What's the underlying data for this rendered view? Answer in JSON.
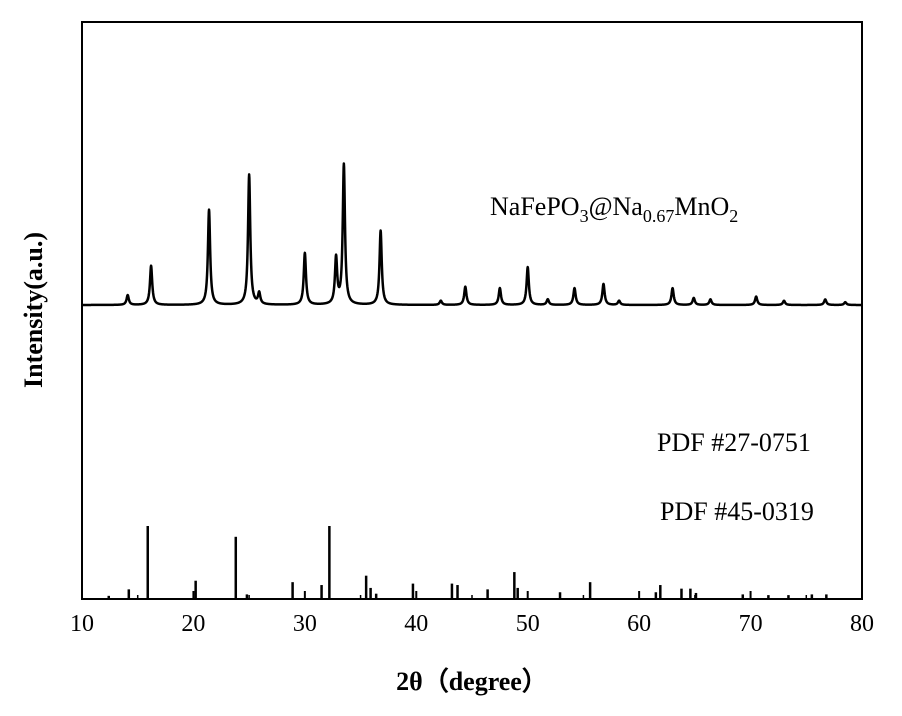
{
  "chart_data": {
    "type": "line",
    "xlabel": "2θ（degree）",
    "ylabel": "Intensity(a.u.)",
    "xlim": [
      10,
      80
    ],
    "x_ticks": [
      "10",
      "20",
      "30",
      "40",
      "50",
      "60",
      "70",
      "80"
    ],
    "y_ticks_shown": false,
    "grid": false,
    "annotations": {
      "sample": {
        "base": "NaFePO",
        "sub1": "3",
        "mid": "@Na",
        "sub2": "0.67",
        "mid2": "MnO",
        "sub3": "2"
      },
      "ref1": "PDF #27-0751",
      "ref2": "PDF #45-0319"
    },
    "pattern": {
      "baseline": 0,
      "peaks": [
        {
          "x": 14.1,
          "y": 0.07
        },
        {
          "x": 16.2,
          "y": 0.28
        },
        {
          "x": 21.4,
          "y": 0.68
        },
        {
          "x": 25.0,
          "y": 0.93
        },
        {
          "x": 25.9,
          "y": 0.08
        },
        {
          "x": 30.0,
          "y": 0.37
        },
        {
          "x": 32.8,
          "y": 0.33
        },
        {
          "x": 33.5,
          "y": 1.0
        },
        {
          "x": 36.8,
          "y": 0.53
        },
        {
          "x": 42.2,
          "y": 0.03
        },
        {
          "x": 44.4,
          "y": 0.13
        },
        {
          "x": 47.5,
          "y": 0.12
        },
        {
          "x": 50.0,
          "y": 0.27
        },
        {
          "x": 51.8,
          "y": 0.04
        },
        {
          "x": 54.2,
          "y": 0.12
        },
        {
          "x": 56.8,
          "y": 0.15
        },
        {
          "x": 58.2,
          "y": 0.03
        },
        {
          "x": 63.0,
          "y": 0.12
        },
        {
          "x": 64.9,
          "y": 0.05
        },
        {
          "x": 66.4,
          "y": 0.04
        },
        {
          "x": 70.5,
          "y": 0.06
        },
        {
          "x": 73.0,
          "y": 0.03
        },
        {
          "x": 76.7,
          "y": 0.04
        },
        {
          "x": 78.5,
          "y": 0.02
        }
      ]
    },
    "reference_sticks": [
      {
        "x": 12.4,
        "y": 0.03
      },
      {
        "x": 14.2,
        "y": 0.12
      },
      {
        "x": 15.9,
        "y": 1.0
      },
      {
        "x": 20.2,
        "y": 0.24
      },
      {
        "x": 23.8,
        "y": 0.85
      },
      {
        "x": 24.8,
        "y": 0.05
      },
      {
        "x": 28.9,
        "y": 0.22
      },
      {
        "x": 31.5,
        "y": 0.18
      },
      {
        "x": 32.2,
        "y": 1.0
      },
      {
        "x": 35.5,
        "y": 0.31
      },
      {
        "x": 35.9,
        "y": 0.14
      },
      {
        "x": 36.4,
        "y": 0.06
      },
      {
        "x": 39.7,
        "y": 0.2
      },
      {
        "x": 43.2,
        "y": 0.2
      },
      {
        "x": 43.7,
        "y": 0.18
      },
      {
        "x": 46.4,
        "y": 0.12
      },
      {
        "x": 48.8,
        "y": 0.36
      },
      {
        "x": 49.1,
        "y": 0.14
      },
      {
        "x": 52.9,
        "y": 0.08
      },
      {
        "x": 55.6,
        "y": 0.22
      },
      {
        "x": 61.5,
        "y": 0.08
      },
      {
        "x": 61.9,
        "y": 0.18
      },
      {
        "x": 63.8,
        "y": 0.13
      },
      {
        "x": 64.6,
        "y": 0.13
      },
      {
        "x": 65.1,
        "y": 0.07
      },
      {
        "x": 69.3,
        "y": 0.05
      },
      {
        "x": 71.6,
        "y": 0.04
      },
      {
        "x": 73.4,
        "y": 0.04
      },
      {
        "x": 75.5,
        "y": 0.05
      },
      {
        "x": 76.8,
        "y": 0.05
      }
    ]
  }
}
